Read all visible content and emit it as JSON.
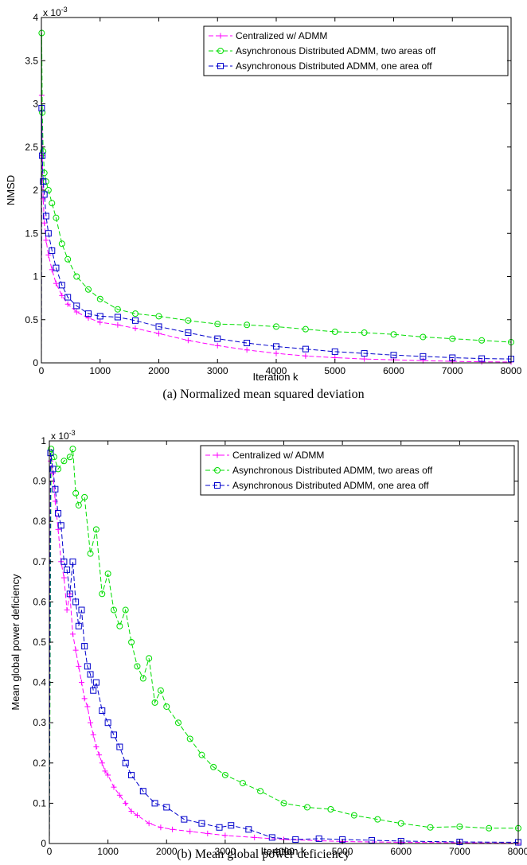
{
  "chart_data": [
    {
      "type": "line",
      "caption": "(a) Normalized mean squared deviation",
      "xlabel": "Iteration k",
      "ylabel": "NMSD",
      "exponent_base": "x 10",
      "exponent_power": "-3",
      "xlim": [
        0,
        8000
      ],
      "ylim": [
        0,
        4
      ],
      "xticks": [
        "0",
        "1000",
        "2000",
        "3000",
        "4000",
        "5000",
        "6000",
        "7000",
        "8000"
      ],
      "yticks": [
        "0",
        "0.5",
        "1",
        "1.5",
        "2",
        "2.5",
        "3",
        "3.5",
        "4"
      ],
      "legend_position": "top-right",
      "series": [
        {
          "name": "Centralized w/ ADMM",
          "color": "#ff00ff",
          "marker": "plus",
          "x": [
            0,
            5,
            15,
            30,
            50,
            80,
            120,
            180,
            250,
            350,
            450,
            600,
            800,
            1000,
            1300,
            1600,
            2000,
            2500,
            3000,
            3500,
            4000,
            4500,
            5000,
            5500,
            6000,
            6500,
            7000,
            7500,
            8000
          ],
          "y": [
            0,
            3.1,
            2.4,
            1.9,
            1.62,
            1.42,
            1.25,
            1.08,
            0.92,
            0.78,
            0.68,
            0.59,
            0.52,
            0.47,
            0.44,
            0.4,
            0.34,
            0.26,
            0.2,
            0.15,
            0.11,
            0.08,
            0.06,
            0.045,
            0.035,
            0.025,
            0.018,
            0.012,
            0.01
          ]
        },
        {
          "name": "Asynchronous Distributed ADMM, two areas off",
          "color": "#00dd00",
          "marker": "circle",
          "x": [
            0,
            5,
            15,
            30,
            50,
            80,
            120,
            180,
            250,
            350,
            450,
            600,
            800,
            1000,
            1300,
            1600,
            2000,
            2500,
            3000,
            3500,
            4000,
            4500,
            5000,
            5500,
            6000,
            6500,
            7000,
            7500,
            8000
          ],
          "y": [
            0,
            3.82,
            2.9,
            2.45,
            2.2,
            2.1,
            2.0,
            1.85,
            1.68,
            1.38,
            1.2,
            1.0,
            0.85,
            0.74,
            0.62,
            0.57,
            0.54,
            0.49,
            0.45,
            0.44,
            0.42,
            0.39,
            0.36,
            0.35,
            0.33,
            0.3,
            0.28,
            0.26,
            0.24
          ]
        },
        {
          "name": "Asynchronous Distributed ADMM, one area off",
          "color": "#0000cc",
          "marker": "square",
          "x": [
            0,
            5,
            15,
            30,
            50,
            80,
            120,
            180,
            250,
            350,
            450,
            600,
            800,
            1000,
            1300,
            1600,
            2000,
            2500,
            3000,
            3500,
            4000,
            4500,
            5000,
            5500,
            6000,
            6500,
            7000,
            7500,
            8000
          ],
          "y": [
            0,
            2.95,
            2.4,
            2.1,
            1.95,
            1.7,
            1.5,
            1.3,
            1.1,
            0.9,
            0.76,
            0.66,
            0.57,
            0.54,
            0.53,
            0.49,
            0.42,
            0.35,
            0.28,
            0.23,
            0.19,
            0.16,
            0.13,
            0.11,
            0.09,
            0.075,
            0.06,
            0.05,
            0.045
          ]
        }
      ]
    },
    {
      "type": "line",
      "caption": "(b) Mean global power deficiency",
      "xlabel": "Iteration k",
      "ylabel": "Mean global power deficiency",
      "exponent_base": "x 10",
      "exponent_power": "-3",
      "xlim": [
        0,
        8000
      ],
      "ylim": [
        0,
        1
      ],
      "xticks": [
        "0",
        "1000",
        "2000",
        "3000",
        "4000",
        "5000",
        "6000",
        "7000",
        "8000"
      ],
      "yticks": [
        "0",
        "0.1",
        "0.2",
        "0.3",
        "0.4",
        "0.5",
        "0.6",
        "0.7",
        "0.8",
        "0.9",
        "1"
      ],
      "legend_position": "top-right",
      "series": [
        {
          "name": "Centralized w/ ADMM",
          "color": "#ff00ff",
          "marker": "plus",
          "x": [
            0,
            20,
            60,
            100,
            150,
            200,
            250,
            300,
            350,
            400,
            450,
            500,
            550,
            600,
            650,
            700,
            750,
            800,
            850,
            900,
            950,
            1000,
            1100,
            1200,
            1300,
            1400,
            1500,
            1700,
            1900,
            2100,
            2400,
            2700,
            3000,
            3500,
            4000,
            5000,
            6000,
            7000,
            8000
          ],
          "y": [
            0,
            0.95,
            0.92,
            0.85,
            0.78,
            0.7,
            0.66,
            0.58,
            0.62,
            0.52,
            0.48,
            0.44,
            0.4,
            0.36,
            0.34,
            0.3,
            0.27,
            0.24,
            0.22,
            0.2,
            0.18,
            0.17,
            0.14,
            0.12,
            0.1,
            0.08,
            0.07,
            0.05,
            0.04,
            0.035,
            0.03,
            0.025,
            0.02,
            0.015,
            0.01,
            0.005,
            0.003,
            0.002,
            0.001
          ]
        },
        {
          "name": "Asynchronous Distributed ADMM, two areas off",
          "color": "#00dd00",
          "marker": "circle",
          "x": [
            0,
            30,
            80,
            150,
            250,
            350,
            400,
            450,
            500,
            600,
            700,
            800,
            900,
            1000,
            1100,
            1200,
            1300,
            1400,
            1500,
            1600,
            1700,
            1800,
            1900,
            2000,
            2200,
            2400,
            2600,
            2800,
            3000,
            3300,
            3600,
            4000,
            4400,
            4800,
            5200,
            5600,
            6000,
            6500,
            7000,
            7500,
            8000
          ],
          "y": [
            0,
            0.98,
            0.96,
            0.93,
            0.95,
            0.96,
            0.98,
            0.87,
            0.84,
            0.86,
            0.72,
            0.78,
            0.62,
            0.67,
            0.58,
            0.54,
            0.58,
            0.5,
            0.44,
            0.41,
            0.46,
            0.35,
            0.38,
            0.34,
            0.3,
            0.26,
            0.22,
            0.19,
            0.17,
            0.15,
            0.13,
            0.1,
            0.09,
            0.085,
            0.07,
            0.06,
            0.05,
            0.04,
            0.042,
            0.038,
            0.038
          ]
        },
        {
          "name": "Asynchronous Distributed ADMM, one area off",
          "color": "#0000cc",
          "marker": "square",
          "x": [
            0,
            20,
            60,
            100,
            150,
            200,
            250,
            300,
            350,
            400,
            450,
            500,
            550,
            600,
            650,
            700,
            750,
            800,
            900,
            1000,
            1100,
            1200,
            1300,
            1400,
            1600,
            1800,
            2000,
            2300,
            2600,
            2900,
            3100,
            3400,
            3800,
            4200,
            4600,
            5000,
            5500,
            6000,
            7000,
            8000
          ],
          "y": [
            0,
            0.97,
            0.93,
            0.88,
            0.82,
            0.79,
            0.7,
            0.68,
            0.62,
            0.7,
            0.6,
            0.54,
            0.58,
            0.49,
            0.44,
            0.42,
            0.38,
            0.4,
            0.33,
            0.3,
            0.27,
            0.24,
            0.2,
            0.17,
            0.13,
            0.1,
            0.09,
            0.06,
            0.05,
            0.04,
            0.045,
            0.035,
            0.015,
            0.01,
            0.012,
            0.01,
            0.008,
            0.006,
            0.004,
            0.003
          ]
        }
      ]
    }
  ]
}
